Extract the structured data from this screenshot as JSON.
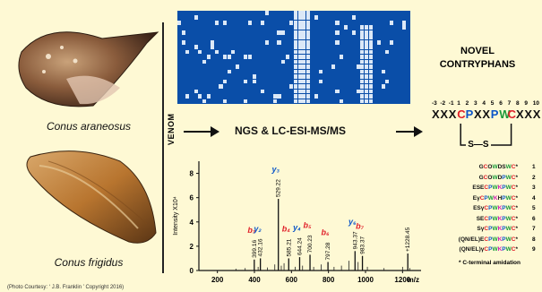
{
  "species": {
    "top_name": "Conus araneosus",
    "bottom_name": "Conus frigidus",
    "credit": "(Photo Courtesy: ‘ J.B. Franklin ’ Copyright 2016)"
  },
  "venom_label": "VENOM",
  "method_label": "NGS & LC-ESI-MS/MS",
  "novel_title_line1": "NOVEL",
  "novel_title_line2": "CONTRYPHANS",
  "motif": {
    "positions": [
      "-3",
      "-2",
      "-1",
      "1",
      "2",
      "3",
      "4",
      "5",
      "6",
      "7",
      "8",
      "9",
      "10"
    ],
    "letters": [
      "X",
      "X",
      "X",
      "C",
      "P",
      "X",
      "X",
      "P",
      "W",
      "C",
      "X",
      "X",
      "X"
    ],
    "colors": [
      "#111",
      "#111",
      "#111",
      "#e0202a",
      "#0a55c8",
      "#111",
      "#111",
      "#0a55c8",
      "#1a9a3a",
      "#e0202a",
      "#111",
      "#111",
      "#111"
    ],
    "bridge_label": "S—S"
  },
  "peptides": [
    {
      "seq": "GCOWDSWC*",
      "num": "1"
    },
    {
      "seq": "GCOWDPWC*",
      "num": "2"
    },
    {
      "seq": "ESECPWKPWC*",
      "num": "3"
    },
    {
      "seq": "EγCPWKHPWC*",
      "num": "4"
    },
    {
      "seq": "ESγCPWKPWC*",
      "num": "5"
    },
    {
      "seq": "SECPWKPWC*",
      "num": "6"
    },
    {
      "seq": "SγCPWKPWC*",
      "num": "7"
    },
    {
      "seq": "(QN/EL)ECPWKPWC*",
      "num": "8"
    },
    {
      "seq": "(QN/EL)γCPWKPWC*",
      "num": "9"
    }
  ],
  "amidation_note": "* C-terminal amidation",
  "chart_data": {
    "type": "bar",
    "xlabel": "m/z",
    "ylabel": "Intensity X10⁴",
    "xlim": [
      100,
      1300
    ],
    "ylim": [
      0,
      9
    ],
    "xticks": [
      200,
      400,
      600,
      800,
      1000,
      1200
    ],
    "yticks": [
      0,
      2,
      4,
      6,
      8
    ],
    "peaks": [
      {
        "mz": 399.16,
        "intensity": 0.9,
        "label": "399.16",
        "ion": "b₃",
        "ion_color": "#e0202a"
      },
      {
        "mz": 432.16,
        "intensity": 1.0,
        "label": "432.16",
        "ion": "y₂",
        "ion_color": "#0a55c8"
      },
      {
        "mz": 529.22,
        "intensity": 5.9,
        "label": "529.22",
        "ion": "y₃",
        "ion_color": "#0a55c8"
      },
      {
        "mz": 585.21,
        "intensity": 1.0,
        "label": "585.21",
        "ion": "b₄",
        "ion_color": "#e0202a"
      },
      {
        "mz": 644.24,
        "intensity": 1.1,
        "label": "644.24",
        "ion": "y₄",
        "ion_color": "#0a55c8"
      },
      {
        "mz": 700.23,
        "intensity": 1.3,
        "label": "700.23",
        "ion": "b₅",
        "ion_color": "#e0202a"
      },
      {
        "mz": 797.28,
        "intensity": 0.7,
        "label": "797.28",
        "ion": "b₆",
        "ion_color": "#e0202a"
      },
      {
        "mz": 943.37,
        "intensity": 1.6,
        "label": "943.37",
        "ion": "y₆",
        "ion_color": "#0a55c8"
      },
      {
        "mz": 983.37,
        "intensity": 1.2,
        "label": "983.37",
        "ion": "b₇",
        "ion_color": "#e0202a"
      },
      {
        "mz": 1228.45,
        "intensity": 1.4,
        "label": "+1228.45",
        "ion": "",
        "ion_color": "#111"
      }
    ],
    "noise": [
      {
        "mz": 300,
        "intensity": 0.15
      },
      {
        "mz": 350,
        "intensity": 0.2
      },
      {
        "mz": 420,
        "intensity": 0.3
      },
      {
        "mz": 470,
        "intensity": 0.25
      },
      {
        "mz": 510,
        "intensity": 0.5
      },
      {
        "mz": 545,
        "intensity": 0.4
      },
      {
        "mz": 560,
        "intensity": 0.6
      },
      {
        "mz": 620,
        "intensity": 0.3
      },
      {
        "mz": 660,
        "intensity": 0.4
      },
      {
        "mz": 720,
        "intensity": 0.3
      },
      {
        "mz": 760,
        "intensity": 0.5
      },
      {
        "mz": 830,
        "intensity": 0.3
      },
      {
        "mz": 870,
        "intensity": 0.4
      },
      {
        "mz": 910,
        "intensity": 0.8
      },
      {
        "mz": 960,
        "intensity": 0.7
      },
      {
        "mz": 1010,
        "intensity": 0.3
      },
      {
        "mz": 1100,
        "intensity": 0.2
      },
      {
        "mz": 1200,
        "intensity": 0.3
      },
      {
        "mz": 1240,
        "intensity": 0.2
      }
    ]
  },
  "colors": {
    "background": "#fef9d4",
    "alignment_blue": "#0a4ea8",
    "alignment_light": "#dbe8f7",
    "cys_red": "#e0202a",
    "pro_blue": "#0a55c8",
    "trp_green": "#1a9a3a",
    "lys_magenta": "#d21bb4"
  }
}
